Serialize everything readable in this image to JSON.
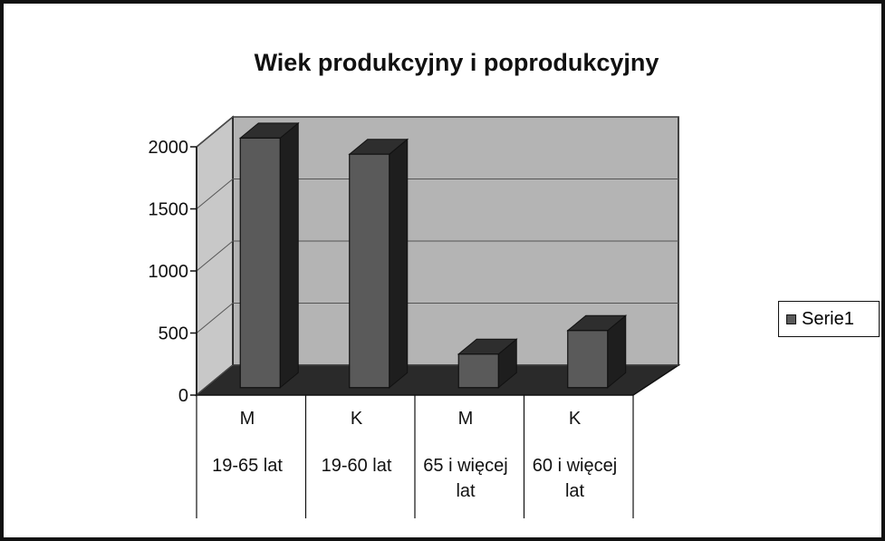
{
  "chart_data": {
    "type": "bar3d",
    "title": "Wiek produkcyjny i poprodukcyjny",
    "categories": [
      [
        "M",
        "19-65 lat"
      ],
      [
        "K",
        "19-60 lat"
      ],
      [
        "M",
        "65 i więcej lat"
      ],
      [
        "K",
        "60 i więcej lat"
      ]
    ],
    "series": [
      {
        "name": "Serie1",
        "color": "#5a5a5a",
        "values": [
          2010,
          1880,
          270,
          460
        ]
      }
    ],
    "ylim": [
      0,
      2000
    ],
    "yticks": [
      0,
      500,
      1000,
      1500,
      2000
    ],
    "grid": true,
    "legend": "right"
  }
}
